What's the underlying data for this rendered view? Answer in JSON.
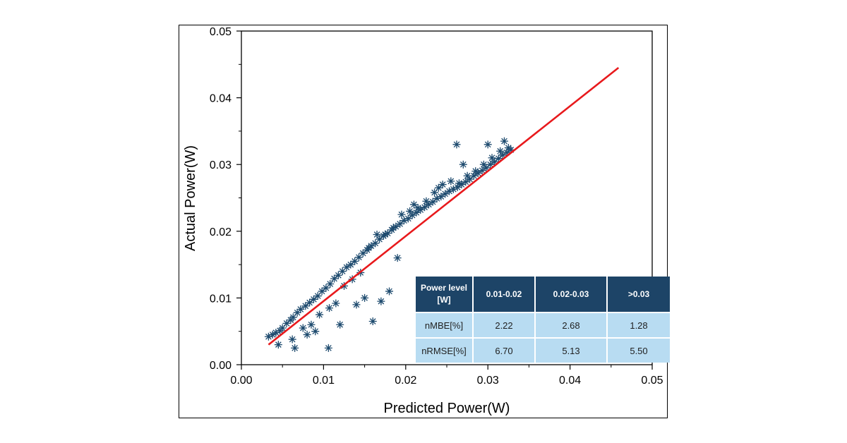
{
  "chart_data": {
    "type": "scatter",
    "title": "",
    "xlabel": "Predicted Power(W)",
    "ylabel": "Actual Power(W)",
    "xlim": [
      0,
      0.05
    ],
    "ylim": [
      0,
      0.05
    ],
    "x_ticks": [
      "0.00",
      "0.01",
      "0.02",
      "0.03",
      "0.04",
      "0.05"
    ],
    "y_ticks": [
      "0.00",
      "0.01",
      "0.02",
      "0.03",
      "0.04",
      "0.05"
    ],
    "grid": false,
    "marker_color": "#1d4a6e",
    "line_color": "#e8191c",
    "series": [
      {
        "marker": "asterisk",
        "x": [
          0.0033,
          0.0038,
          0.0042,
          0.0047,
          0.005,
          0.0055,
          0.006,
          0.0063,
          0.0068,
          0.0072,
          0.0078,
          0.0083,
          0.0088,
          0.0093,
          0.0098,
          0.0103,
          0.0108,
          0.0113,
          0.0118,
          0.0123,
          0.0128,
          0.0133,
          0.0138,
          0.0143,
          0.0148,
          0.0153,
          0.0158,
          0.0163,
          0.0168,
          0.0173,
          0.0178,
          0.0183,
          0.0188,
          0.0193,
          0.0198,
          0.0203,
          0.0208,
          0.0213,
          0.0218,
          0.0223,
          0.0228,
          0.0233,
          0.0238,
          0.0243,
          0.0248,
          0.0253,
          0.0258,
          0.0263,
          0.0268,
          0.0273,
          0.0278,
          0.0283,
          0.0288,
          0.0293,
          0.0298,
          0.0303,
          0.0308,
          0.0313,
          0.0318,
          0.0323,
          0.0328,
          0.0045,
          0.0065,
          0.0075,
          0.0085,
          0.0095,
          0.0107,
          0.0115,
          0.0125,
          0.0135,
          0.0145,
          0.0155,
          0.0165,
          0.0175,
          0.0185,
          0.0195,
          0.0205,
          0.0215,
          0.0225,
          0.0235,
          0.0245,
          0.0255,
          0.0265,
          0.0275,
          0.0285,
          0.0295,
          0.0305,
          0.0315,
          0.0325,
          0.0062,
          0.008,
          0.009,
          0.0106,
          0.012,
          0.014,
          0.015,
          0.016,
          0.017,
          0.018,
          0.019,
          0.021,
          0.024,
          0.0262,
          0.027,
          0.03,
          0.032
        ],
        "y": [
          0.0042,
          0.0045,
          0.0048,
          0.0051,
          0.0055,
          0.0062,
          0.0067,
          0.0071,
          0.0078,
          0.0083,
          0.0088,
          0.0093,
          0.0098,
          0.0103,
          0.011,
          0.0115,
          0.0121,
          0.0129,
          0.0134,
          0.014,
          0.0146,
          0.015,
          0.0155,
          0.0161,
          0.0167,
          0.0172,
          0.0178,
          0.0182,
          0.0188,
          0.0193,
          0.0197,
          0.0202,
          0.0207,
          0.0211,
          0.0216,
          0.0219,
          0.0224,
          0.0228,
          0.0232,
          0.0236,
          0.024,
          0.0244,
          0.0249,
          0.0252,
          0.0256,
          0.026,
          0.0263,
          0.0266,
          0.027,
          0.0274,
          0.0278,
          0.0283,
          0.0287,
          0.0291,
          0.0295,
          0.03,
          0.0304,
          0.0309,
          0.0314,
          0.0318,
          0.0322,
          0.003,
          0.0025,
          0.0055,
          0.006,
          0.0075,
          0.0085,
          0.0092,
          0.0118,
          0.0128,
          0.0138,
          0.0175,
          0.0195,
          0.0195,
          0.0205,
          0.0225,
          0.023,
          0.0235,
          0.0245,
          0.0258,
          0.027,
          0.0275,
          0.0272,
          0.0283,
          0.029,
          0.03,
          0.031,
          0.032,
          0.0325,
          0.0038,
          0.0045,
          0.005,
          0.0025,
          0.006,
          0.009,
          0.01,
          0.0065,
          0.0095,
          0.011,
          0.016,
          0.024,
          0.0265,
          0.033,
          0.03,
          0.033,
          0.0335
        ]
      }
    ],
    "fit_line": {
      "x": [
        0.0033,
        0.0459
      ],
      "y": [
        0.003,
        0.0445
      ]
    }
  },
  "table": {
    "headers": [
      "Power level [W]",
      "0.01-0.02",
      "0.02-0.03",
      ">0.03"
    ],
    "rows": [
      {
        "label": "nMBE[%]",
        "values": [
          "2.22",
          "2.68",
          "1.28"
        ]
      },
      {
        "label": "nRMSE[%]",
        "values": [
          "6.70",
          "5.13",
          "5.50"
        ]
      }
    ]
  }
}
